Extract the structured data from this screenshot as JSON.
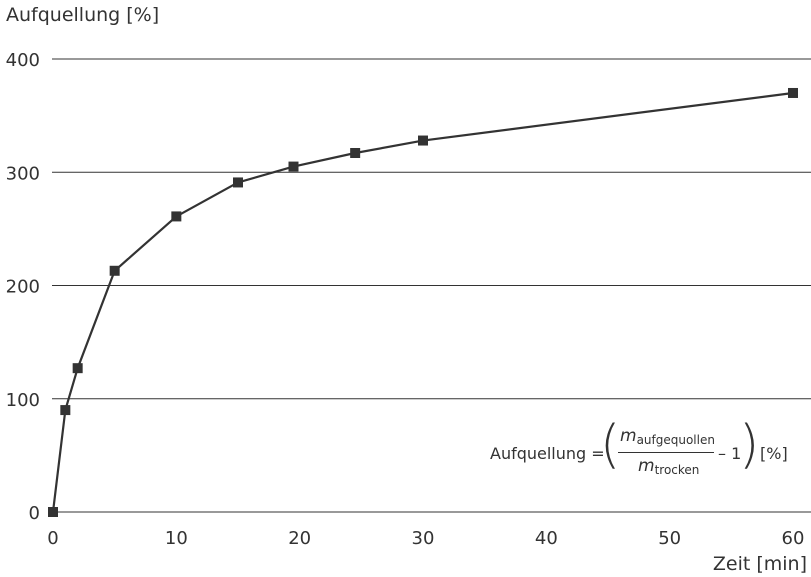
{
  "chart_data": {
    "type": "line",
    "ylabel": "Aufquellung [%]",
    "xlabel": "Zeit [min]",
    "xlim": [
      0,
      60
    ],
    "ylim": [
      0,
      400
    ],
    "xticks": [
      0,
      10,
      20,
      30,
      40,
      50,
      60
    ],
    "yticks": [
      0,
      100,
      200,
      300,
      400
    ],
    "grid": "horizontal",
    "marker": "square",
    "color": "#333333",
    "series": [
      {
        "x": [
          0,
          1,
          2,
          5,
          10,
          15,
          19.5,
          24.5,
          30,
          60
        ],
        "y": [
          0,
          90,
          127,
          213,
          261,
          291,
          305,
          317,
          328,
          370
        ]
      }
    ],
    "formula": {
      "lhs": "Aufquellung =",
      "numerator_var": "m",
      "numerator_sub": "aufgequollen",
      "denominator_var": "m",
      "denominator_sub": "trocken",
      "minus_one": "– 1",
      "unit": "[%]"
    }
  }
}
